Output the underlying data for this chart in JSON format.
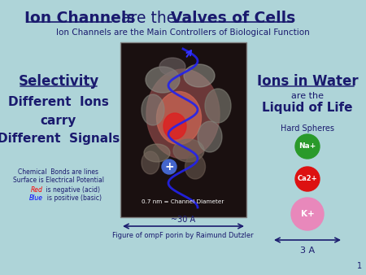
{
  "bg_color": "#aed4d8",
  "subtitle": "Ion Channels are the Main Controllers of Biological Function",
  "left_heading": "Selectivity",
  "left_body": "Different  Ions\ncarry\nDifferent  Signals",
  "left_note_line1": "Chemical  Bonds are lines",
  "left_note_line2": "Surface is Electrical Potential",
  "left_note_red": "Red",
  "left_note_red_suffix": " is negative (acid)",
  "left_note_blue": "Blue",
  "left_note_blue_suffix": "  is positive (basic)",
  "right_heading": "Ions in Water",
  "right_sub1": "are the",
  "right_sub2": "Liquid of Life",
  "right_hard_spheres": "Hard Spheres",
  "ion_Na_color": "#2a9a2a",
  "ion_Ca_color": "#dd1111",
  "ion_K_color": "#e888bb",
  "ion_Na_label": "Na+",
  "ion_Ca_label": "Ca2+",
  "ion_K_label": "K+",
  "arrow_label": "~30 A",
  "arrow_label2": "3 A",
  "caption": "Figure of ompF porin by Raimund Dutzler",
  "channel_label": "0.7 nm = Channel Diameter",
  "dark_blue": "#1a1a6e",
  "slide_num": "1"
}
